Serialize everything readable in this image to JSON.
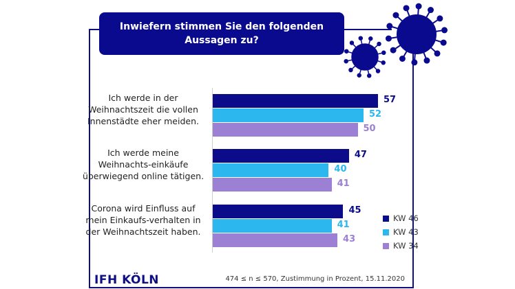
{
  "chart_data": {
    "type": "bar",
    "orientation": "horizontal",
    "title": "Inwiefern stimmen Sie den folgenden Aussagen zu?",
    "categories": [
      "Ich werde in der Weihnachtszeit die vollen Innenstädte eher meiden.",
      "Ich werde meine Weihnachts-einkäufe überwiegend online tätigen.",
      "Corona wird Einfluss auf mein Einkaufs-verhalten in der Weihnachtszeit haben."
    ],
    "series": [
      {
        "name": "KW 46",
        "color": "#0c0c8a",
        "values": [
          57,
          47,
          45
        ]
      },
      {
        "name": "KW 43",
        "color": "#2cb7ef",
        "values": [
          52,
          40,
          41
        ]
      },
      {
        "name": "KW 34",
        "color": "#9b80d4",
        "values": [
          50,
          41,
          43
        ]
      }
    ],
    "xlim": [
      0,
      60
    ],
    "legend": "bottom-right",
    "grid": false
  },
  "footer": {
    "logo": "IFH KÖLN",
    "note": "474 ≤ n ≤ 570, Zustimmung in Prozent, 15.11.2020"
  },
  "colors": {
    "brand": "#0a0a8f"
  }
}
